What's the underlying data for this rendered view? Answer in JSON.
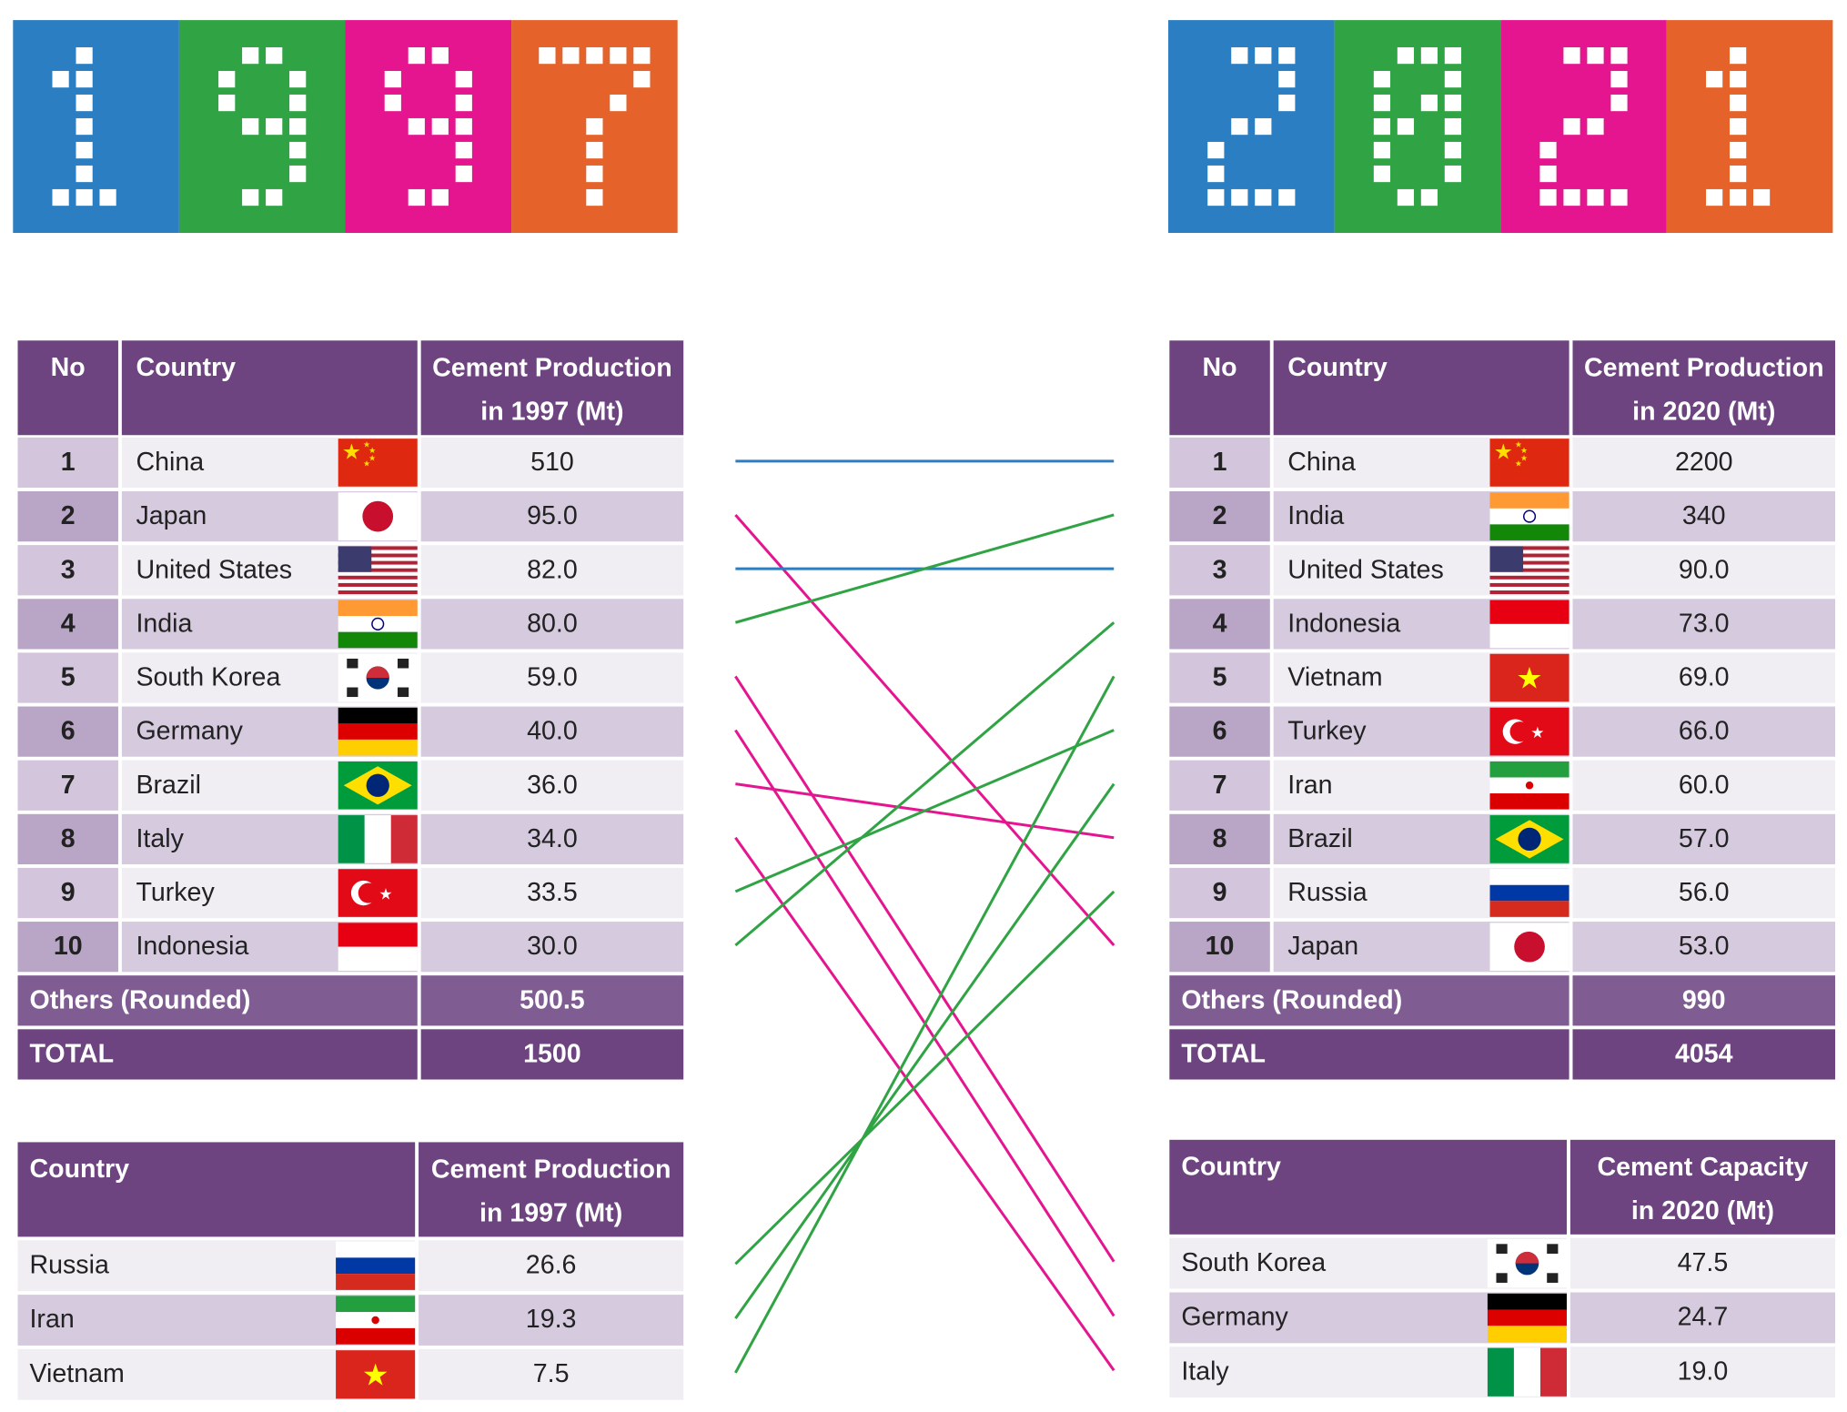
{
  "year_tiles": {
    "left": [
      "1",
      "9",
      "9",
      "7"
    ],
    "right": [
      "2",
      "0",
      "2",
      "1"
    ],
    "colors": [
      "#2b7ec1",
      "#30a444",
      "#e5158f",
      "#e5632a"
    ]
  },
  "colors": {
    "header_purple": "#6d4480",
    "others_purple": "#7f5c91",
    "row_light": "#f0eef3",
    "row_dark": "#d6cadf",
    "no_light": "#d3c6dc",
    "no_dark": "#b9a6c6",
    "link_same": "#2b7ec1",
    "link_up": "#30a444",
    "link_down": "#e5158f"
  },
  "table_1997": {
    "headers": {
      "no": "No",
      "country": "Country",
      "value": "Cement Production in 1997 (Mt)"
    },
    "rows": [
      {
        "no": "1",
        "country": "China",
        "flag": "flag-china",
        "value": "510"
      },
      {
        "no": "2",
        "country": "Japan",
        "flag": "flag-japan",
        "value": "95.0"
      },
      {
        "no": "3",
        "country": "United States",
        "flag": "flag-usa",
        "value": "82.0"
      },
      {
        "no": "4",
        "country": "India",
        "flag": "flag-india",
        "value": "80.0"
      },
      {
        "no": "5",
        "country": "South Korea",
        "flag": "flag-south-korea",
        "value": "59.0"
      },
      {
        "no": "6",
        "country": "Germany",
        "flag": "flag-germany",
        "value": "40.0"
      },
      {
        "no": "7",
        "country": "Brazil",
        "flag": "flag-brazil",
        "value": "36.0"
      },
      {
        "no": "8",
        "country": "Italy",
        "flag": "flag-italy",
        "value": "34.0"
      },
      {
        "no": "9",
        "country": "Turkey",
        "flag": "flag-turkey",
        "value": "33.5"
      },
      {
        "no": "10",
        "country": "Indonesia",
        "flag": "flag-indonesia",
        "value": "30.0"
      }
    ],
    "others_label": "Others (Rounded)",
    "others_value": "500.5",
    "total_label": "TOTAL",
    "total_value": "1500"
  },
  "table_2021": {
    "headers": {
      "no": "No",
      "country": "Country",
      "value": "Cement Production in 2020 (Mt)"
    },
    "rows": [
      {
        "no": "1",
        "country": "China",
        "flag": "flag-china",
        "value": "2200"
      },
      {
        "no": "2",
        "country": "India",
        "flag": "flag-india",
        "value": "340"
      },
      {
        "no": "3",
        "country": "United States",
        "flag": "flag-usa",
        "value": "90.0"
      },
      {
        "no": "4",
        "country": "Indonesia",
        "flag": "flag-indonesia",
        "value": "73.0"
      },
      {
        "no": "5",
        "country": "Vietnam",
        "flag": "flag-vietnam",
        "value": "69.0"
      },
      {
        "no": "6",
        "country": "Turkey",
        "flag": "flag-turkey",
        "value": "66.0"
      },
      {
        "no": "7",
        "country": "Iran",
        "flag": "flag-iran",
        "value": "60.0"
      },
      {
        "no": "8",
        "country": "Brazil",
        "flag": "flag-brazil",
        "value": "57.0"
      },
      {
        "no": "9",
        "country": "Russia",
        "flag": "flag-russia",
        "value": "56.0"
      },
      {
        "no": "10",
        "country": "Japan",
        "flag": "flag-japan",
        "value": "53.0"
      }
    ],
    "others_label": "Others (Rounded)",
    "others_value": "990",
    "total_label": "TOTAL",
    "total_value": "4054"
  },
  "extra_1997": {
    "headers": {
      "country": "Country",
      "value": "Cement Production in 1997 (Mt)"
    },
    "rows": [
      {
        "country": "Russia",
        "flag": "flag-russia",
        "value": "26.6"
      },
      {
        "country": "Iran",
        "flag": "flag-iran",
        "value": "19.3"
      },
      {
        "country": "Vietnam",
        "flag": "flag-vietnam",
        "value": "7.5"
      }
    ]
  },
  "extra_2021": {
    "headers": {
      "country": "Country",
      "value": "Cement Capacity in 2020 (Mt)"
    },
    "rows": [
      {
        "country": "South Korea",
        "flag": "flag-south-korea",
        "value": "47.5"
      },
      {
        "country": "Germany",
        "flag": "flag-germany",
        "value": "24.7"
      },
      {
        "country": "Italy",
        "flag": "flag-italy",
        "value": "19.0"
      }
    ]
  },
  "rank_links": [
    {
      "country": "China",
      "from": "1997-1",
      "to": "2021-1",
      "trend": "same"
    },
    {
      "country": "Japan",
      "from": "1997-2",
      "to": "2021-10",
      "trend": "down"
    },
    {
      "country": "United States",
      "from": "1997-3",
      "to": "2021-3",
      "trend": "same"
    },
    {
      "country": "India",
      "from": "1997-4",
      "to": "2021-2",
      "trend": "up"
    },
    {
      "country": "South Korea",
      "from": "1997-5",
      "to": "extra2021-1",
      "trend": "down"
    },
    {
      "country": "Germany",
      "from": "1997-6",
      "to": "extra2021-2",
      "trend": "down"
    },
    {
      "country": "Brazil",
      "from": "1997-7",
      "to": "2021-8",
      "trend": "down"
    },
    {
      "country": "Italy",
      "from": "1997-8",
      "to": "extra2021-3",
      "trend": "down"
    },
    {
      "country": "Turkey",
      "from": "1997-9",
      "to": "2021-6",
      "trend": "up"
    },
    {
      "country": "Indonesia",
      "from": "1997-10",
      "to": "2021-4",
      "trend": "up"
    },
    {
      "country": "Russia",
      "from": "extra1997-1",
      "to": "2021-9",
      "trend": "up"
    },
    {
      "country": "Iran",
      "from": "extra1997-2",
      "to": "2021-7",
      "trend": "up"
    },
    {
      "country": "Vietnam",
      "from": "extra1997-3",
      "to": "2021-5",
      "trend": "up"
    }
  ]
}
